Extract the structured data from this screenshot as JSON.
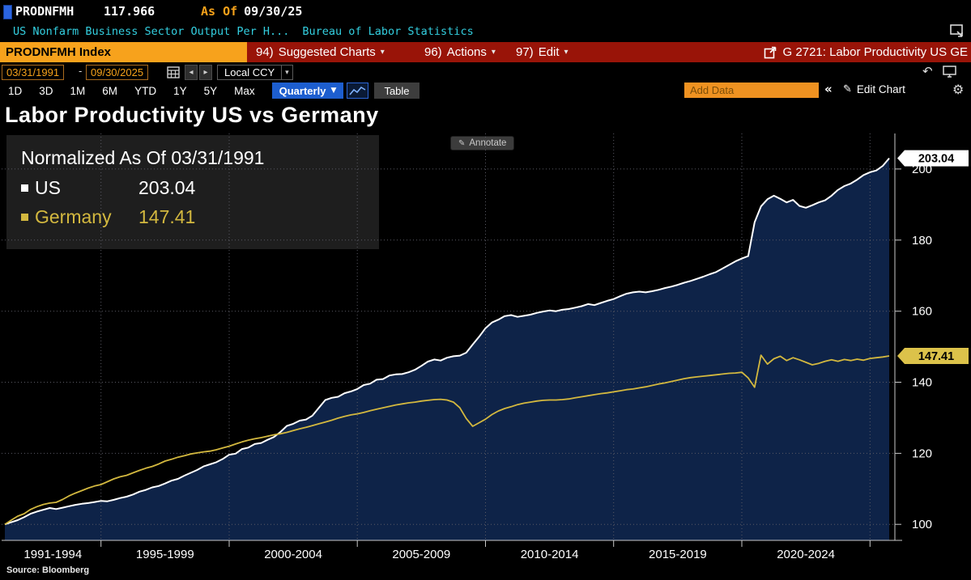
{
  "top_bar": {
    "ticker": "PRODNFMH",
    "last_value": "117.966",
    "as_of_label": "As Of",
    "as_of_date": "09/30/25"
  },
  "description_bar": {
    "description": "US Nonfarm Business Sector Output Per H...",
    "source": "Bureau of Labor Statistics"
  },
  "menu_bar": {
    "security_field": "PRODNFMH Index",
    "items": [
      {
        "number": "94)",
        "label": "Suggested Charts"
      },
      {
        "number": "96)",
        "label": "Actions"
      },
      {
        "number": "97)",
        "label": "Edit"
      }
    ],
    "chart_tag": "G 2721: Labor Productivity US GE"
  },
  "range_bar": {
    "date_from": "03/31/1991",
    "separator": "-",
    "date_to": "09/30/2025",
    "currency": "Local CCY"
  },
  "period_bar": {
    "periods": [
      "1D",
      "3D",
      "1M",
      "6M",
      "YTD",
      "1Y",
      "5Y",
      "Max"
    ],
    "frequency": "Quarterly",
    "table_label": "Table",
    "add_data_placeholder": "Add Data",
    "edit_chart_label": "Edit Chart"
  },
  "chart_header": {
    "title": "Labor Productivity US vs Germany"
  },
  "legend_panel": {
    "title": "Normalized As Of 03/31/1991"
  },
  "tools": {
    "annotate_label": "Annotate"
  },
  "footer": {
    "source_label": "Source: Bloomberg"
  },
  "icons": {
    "dropdown": "▾",
    "frequency_dropdown": "▼",
    "prev": "◂",
    "next": "▸",
    "undo": "↶",
    "collapse": "«",
    "pencil": "✎",
    "gear": "⚙"
  },
  "colors": {
    "accent_amber": "#f7a21c",
    "menu_red": "#991408",
    "us_line": "#ffffff",
    "germany_line": "#d3b83f",
    "area_fill": "#0e2348",
    "cyan_text": "#33cfe0"
  },
  "chart_data": {
    "type": "line",
    "title": "Labor Productivity US vs Germany",
    "normalized_as_of": "03/31/1991",
    "frequency": "Quarterly",
    "x_start": 1991.25,
    "x_step": 0.25,
    "x_end": 2025.75,
    "x_tick_years": [
      1995,
      2000,
      2005,
      2010,
      2015,
      2020,
      2025
    ],
    "x_tick_labels": [
      "1991-1994",
      "1995-1999",
      "2000-2004",
      "2005-2009",
      "2010-2014",
      "2015-2019",
      "2020-2024"
    ],
    "y_ticks": [
      100,
      120,
      140,
      160,
      180,
      200
    ],
    "ylim": [
      95.5,
      210
    ],
    "grid": "dotted",
    "legend_position": "top-left",
    "series": [
      {
        "name": "US",
        "last": 203.04,
        "last_label": "203.04",
        "color": "#ffffff",
        "badge": "#ffffff",
        "fill": "#0e2348",
        "width": 2,
        "values": [
          100.0,
          100.6,
          101.2,
          102.0,
          103.0,
          103.6,
          104.1,
          104.6,
          104.3,
          104.7,
          105.1,
          105.5,
          105.8,
          106.0,
          106.3,
          106.6,
          106.5,
          106.9,
          107.4,
          107.8,
          108.4,
          109.2,
          109.7,
          110.4,
          110.8,
          111.5,
          112.3,
          112.8,
          113.7,
          114.5,
          115.3,
          116.3,
          116.9,
          117.5,
          118.4,
          119.6,
          119.9,
          121.2,
          121.6,
          122.6,
          122.9,
          123.8,
          124.6,
          126.0,
          127.7,
          128.3,
          129.2,
          129.5,
          130.6,
          132.8,
          135.0,
          135.6,
          135.9,
          136.9,
          137.4,
          138.1,
          139.2,
          139.6,
          140.7,
          140.9,
          141.9,
          142.2,
          142.3,
          142.8,
          143.5,
          144.6,
          145.8,
          146.4,
          146.1,
          146.9,
          147.3,
          147.5,
          148.3,
          150.6,
          152.8,
          155.2,
          156.8,
          157.6,
          158.6,
          158.9,
          158.4,
          158.7,
          159.0,
          159.5,
          159.9,
          160.2,
          160.0,
          160.4,
          160.6,
          161.0,
          161.4,
          162.0,
          161.7,
          162.3,
          162.9,
          163.4,
          164.2,
          164.9,
          165.3,
          165.5,
          165.3,
          165.6,
          166.0,
          166.5,
          166.9,
          167.4,
          168.0,
          168.5,
          169.1,
          169.7,
          170.4,
          171.0,
          172.0,
          173.0,
          174.0,
          174.8,
          175.5,
          185.0,
          189.5,
          191.5,
          192.5,
          191.6,
          190.6,
          191.3,
          189.6,
          189.1,
          189.8,
          190.6,
          191.2,
          192.5,
          194.1,
          195.2,
          195.9,
          197.0,
          198.3,
          199.1,
          199.6,
          200.9,
          203.04
        ]
      },
      {
        "name": "Germany",
        "last": 147.41,
        "last_label": "147.41",
        "color": "#d3b83f",
        "badge": "#dcc24a",
        "width": 1.8,
        "values": [
          100.0,
          101.2,
          102.3,
          103.0,
          104.2,
          105.0,
          105.6,
          106.0,
          106.2,
          107.0,
          108.0,
          108.8,
          109.5,
          110.2,
          110.8,
          111.2,
          112.0,
          112.8,
          113.4,
          113.8,
          114.5,
          115.2,
          115.8,
          116.3,
          117.0,
          117.8,
          118.3,
          118.9,
          119.3,
          119.8,
          120.1,
          120.4,
          120.6,
          121.0,
          121.5,
          122.0,
          122.6,
          123.2,
          123.7,
          124.1,
          124.4,
          124.8,
          125.2,
          125.5,
          125.9,
          126.4,
          126.9,
          127.3,
          127.8,
          128.3,
          128.8,
          129.3,
          129.9,
          130.4,
          130.8,
          131.1,
          131.5,
          132.0,
          132.4,
          132.8,
          133.2,
          133.6,
          133.9,
          134.2,
          134.4,
          134.7,
          134.9,
          135.1,
          135.2,
          135.0,
          134.4,
          132.8,
          129.8,
          127.6,
          128.6,
          129.6,
          130.9,
          131.9,
          132.6,
          133.1,
          133.7,
          134.1,
          134.4,
          134.7,
          134.9,
          135.0,
          135.0,
          135.1,
          135.3,
          135.6,
          135.9,
          136.2,
          136.5,
          136.8,
          137.0,
          137.3,
          137.6,
          137.9,
          138.1,
          138.4,
          138.7,
          139.1,
          139.5,
          139.8,
          140.2,
          140.6,
          141.0,
          141.3,
          141.5,
          141.7,
          141.9,
          142.1,
          142.3,
          142.5,
          142.6,
          142.8,
          141.2,
          138.6,
          147.6,
          145.1,
          146.6,
          147.3,
          146.1,
          146.9,
          146.3,
          145.6,
          144.9,
          145.3,
          145.9,
          146.3,
          145.9,
          146.4,
          146.1,
          146.5,
          146.2,
          146.7,
          146.9,
          147.1,
          147.41
        ]
      }
    ]
  }
}
